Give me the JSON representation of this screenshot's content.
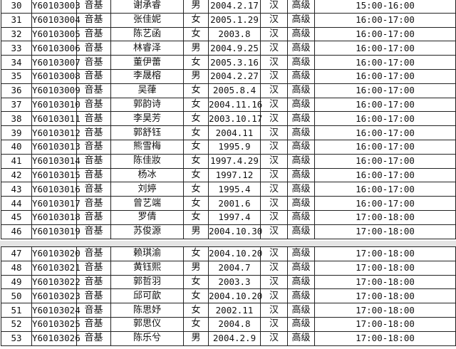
{
  "table1": [
    [
      "30",
      "Y60103003",
      "音基",
      "谢承睿",
      "男",
      "2004.2.17",
      "汉",
      "高级",
      "15:00-16:00"
    ],
    [
      "31",
      "Y60103004",
      "音基",
      "张佳妮",
      "女",
      "2005.1.29",
      "汉",
      "高级",
      "16:00-17:00"
    ],
    [
      "32",
      "Y60103005",
      "音基",
      "陈艺函",
      "女",
      "2003.8",
      "汉",
      "高级",
      "16:00-17:00"
    ],
    [
      "33",
      "Y60103006",
      "音基",
      "林睿泽",
      "男",
      "2004.9.25",
      "汉",
      "高级",
      "16:00-17:00"
    ],
    [
      "34",
      "Y60103007",
      "音基",
      "董伊蕾",
      "女",
      "2005.3.16",
      "汉",
      "高级",
      "16:00-17:00"
    ],
    [
      "35",
      "Y60103008",
      "音基",
      "李晟榕",
      "男",
      "2004.2.27",
      "汉",
      "高级",
      "16:00-17:00"
    ],
    [
      "36",
      "Y60103009",
      "音基",
      "吴葎",
      "女",
      "2005.8.4",
      "汉",
      "高级",
      "16:00-17:00"
    ],
    [
      "37",
      "Y60103010",
      "音基",
      "郭韵诗",
      "女",
      "2004.11.16",
      "汉",
      "高级",
      "16:00-17:00"
    ],
    [
      "38",
      "Y60103011",
      "音基",
      "李昊芳",
      "女",
      "2003.10.17",
      "汉",
      "高级",
      "16:00-17:00"
    ],
    [
      "39",
      "Y60103012",
      "音基",
      "郭舒钰",
      "女",
      "2004.11",
      "汉",
      "高级",
      "16:00-17:00"
    ],
    [
      "40",
      "Y60103013",
      "音基",
      "熊雪梅",
      "女",
      "1995.9",
      "汉",
      "高级",
      "16:00-17:00"
    ],
    [
      "41",
      "Y60103014",
      "音基",
      "陈佳妝",
      "女",
      "1997.4.29",
      "汉",
      "高级",
      "16:00-17:00"
    ],
    [
      "42",
      "Y60103015",
      "音基",
      "杨冰",
      "女",
      "1997.12",
      "汉",
      "高级",
      "16:00-17:00"
    ],
    [
      "43",
      "Y60103016",
      "音基",
      "刘婷",
      "女",
      "1995.4",
      "汉",
      "高级",
      "16:00-17:00"
    ],
    [
      "44",
      "Y60103017",
      "音基",
      "曾艺端",
      "女",
      "2001.6",
      "汉",
      "高级",
      "16:00-17:00"
    ],
    [
      "45",
      "Y60103018",
      "音基",
      "罗倩",
      "女",
      "1997.4",
      "汉",
      "高级",
      "17:00-18:00"
    ],
    [
      "46",
      "Y60103019",
      "音基",
      "苏俊源",
      "男",
      "2004.10.30",
      "汉",
      "高级",
      "17:00-18:00"
    ]
  ],
  "table2": [
    [
      "47",
      "Y60103020",
      "音基",
      "赖琪渝",
      "女",
      "2004.10.20",
      "汉",
      "高级",
      "17:00-18:00"
    ],
    [
      "48",
      "Y60103021",
      "音基",
      "黄钰熙",
      "男",
      "2004.7",
      "汉",
      "高级",
      "17:00-18:00"
    ],
    [
      "49",
      "Y60103022",
      "音基",
      "郭哲羽",
      "女",
      "2003.3",
      "汉",
      "高级",
      "17:00-18:00"
    ],
    [
      "50",
      "Y60103023",
      "音基",
      "邱可歆",
      "女",
      "2004.10.20",
      "汉",
      "高级",
      "17:00-18:00"
    ],
    [
      "51",
      "Y60103024",
      "音基",
      "陈思妤",
      "女",
      "2002.11",
      "汉",
      "高级",
      "17:00-18:00"
    ],
    [
      "52",
      "Y60103025",
      "音基",
      "郭思仪",
      "女",
      "2004.8",
      "汉",
      "高级",
      "17:00-18:00"
    ],
    [
      "53",
      "Y60103026",
      "音基",
      "陈乐兮",
      "男",
      "2004.2.9",
      "汉",
      "高级",
      "17:00-18:00"
    ]
  ]
}
